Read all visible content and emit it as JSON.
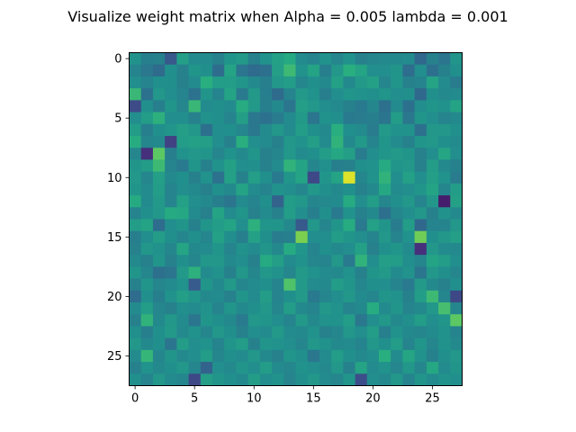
{
  "chart_data": {
    "type": "heatmap",
    "title": "Visualize weight matrix when Alpha = 0.005 lambda =  0.001",
    "xlabel": "",
    "ylabel": "",
    "xlim": [
      -0.5,
      27.5
    ],
    "ylim": [
      27.5,
      -0.5
    ],
    "x_ticks": [
      0,
      5,
      10,
      15,
      20,
      25
    ],
    "y_ticks": [
      0,
      5,
      10,
      15,
      20,
      25
    ],
    "x_tick_labels": [
      "0",
      "5",
      "10",
      "15",
      "20",
      "25"
    ],
    "y_tick_labels": [
      "0",
      "5",
      "10",
      "15",
      "20",
      "25"
    ],
    "colormap": "viridis",
    "vmin": 0,
    "vmax": 1,
    "grid": false,
    "rows": 28,
    "cols": 28,
    "values": [
      [
        0.51,
        0.43,
        0.44,
        0.28,
        0.56,
        0.48,
        0.48,
        0.44,
        0.52,
        0.54,
        0.44,
        0.51,
        0.57,
        0.61,
        0.48,
        0.45,
        0.51,
        0.46,
        0.51,
        0.44,
        0.46,
        0.47,
        0.47,
        0.48,
        0.34,
        0.44,
        0.39,
        0.52
      ],
      [
        0.45,
        0.4,
        0.35,
        0.5,
        0.44,
        0.52,
        0.5,
        0.36,
        0.58,
        0.39,
        0.35,
        0.37,
        0.56,
        0.68,
        0.51,
        0.58,
        0.43,
        0.53,
        0.63,
        0.58,
        0.49,
        0.49,
        0.52,
        0.36,
        0.49,
        0.37,
        0.44,
        0.5
      ],
      [
        0.49,
        0.45,
        0.5,
        0.5,
        0.44,
        0.48,
        0.63,
        0.55,
        0.55,
        0.52,
        0.47,
        0.43,
        0.53,
        0.55,
        0.46,
        0.5,
        0.47,
        0.57,
        0.47,
        0.54,
        0.57,
        0.46,
        0.52,
        0.44,
        0.45,
        0.58,
        0.48,
        0.42
      ],
      [
        0.67,
        0.38,
        0.53,
        0.49,
        0.45,
        0.38,
        0.52,
        0.45,
        0.58,
        0.41,
        0.54,
        0.43,
        0.35,
        0.45,
        0.54,
        0.51,
        0.43,
        0.49,
        0.52,
        0.51,
        0.5,
        0.52,
        0.49,
        0.5,
        0.34,
        0.5,
        0.47,
        0.48
      ],
      [
        0.23,
        0.5,
        0.43,
        0.52,
        0.46,
        0.67,
        0.48,
        0.5,
        0.48,
        0.62,
        0.54,
        0.43,
        0.47,
        0.39,
        0.56,
        0.53,
        0.49,
        0.47,
        0.44,
        0.41,
        0.46,
        0.37,
        0.48,
        0.37,
        0.49,
        0.52,
        0.51,
        0.58
      ],
      [
        0.49,
        0.55,
        0.64,
        0.49,
        0.49,
        0.44,
        0.51,
        0.5,
        0.45,
        0.56,
        0.4,
        0.38,
        0.42,
        0.48,
        0.54,
        0.39,
        0.51,
        0.5,
        0.41,
        0.42,
        0.43,
        0.39,
        0.55,
        0.4,
        0.52,
        0.49,
        0.45,
        0.47
      ],
      [
        0.55,
        0.43,
        0.5,
        0.52,
        0.56,
        0.53,
        0.37,
        0.49,
        0.5,
        0.46,
        0.4,
        0.48,
        0.53,
        0.48,
        0.55,
        0.5,
        0.47,
        0.63,
        0.5,
        0.48,
        0.42,
        0.54,
        0.51,
        0.51,
        0.37,
        0.53,
        0.53,
        0.5
      ],
      [
        0.62,
        0.46,
        0.47,
        0.2,
        0.55,
        0.57,
        0.56,
        0.49,
        0.44,
        0.63,
        0.49,
        0.48,
        0.44,
        0.53,
        0.51,
        0.56,
        0.48,
        0.65,
        0.47,
        0.54,
        0.45,
        0.52,
        0.48,
        0.44,
        0.52,
        0.53,
        0.5,
        0.48
      ],
      [
        0.46,
        0.14,
        0.75,
        0.43,
        0.51,
        0.53,
        0.52,
        0.46,
        0.51,
        0.47,
        0.52,
        0.44,
        0.46,
        0.53,
        0.48,
        0.5,
        0.55,
        0.6,
        0.56,
        0.42,
        0.49,
        0.52,
        0.54,
        0.52,
        0.44,
        0.49,
        0.59,
        0.49
      ],
      [
        0.52,
        0.55,
        0.68,
        0.45,
        0.41,
        0.52,
        0.44,
        0.51,
        0.57,
        0.49,
        0.5,
        0.44,
        0.48,
        0.65,
        0.58,
        0.46,
        0.5,
        0.43,
        0.44,
        0.5,
        0.51,
        0.61,
        0.52,
        0.53,
        0.44,
        0.55,
        0.47,
        0.44
      ],
      [
        0.53,
        0.46,
        0.56,
        0.47,
        0.5,
        0.44,
        0.51,
        0.38,
        0.57,
        0.44,
        0.56,
        0.5,
        0.41,
        0.52,
        0.58,
        0.22,
        0.52,
        0.58,
        0.95,
        0.46,
        0.51,
        0.65,
        0.49,
        0.57,
        0.49,
        0.56,
        0.51,
        0.42
      ],
      [
        0.52,
        0.48,
        0.55,
        0.45,
        0.49,
        0.47,
        0.44,
        0.5,
        0.47,
        0.58,
        0.48,
        0.45,
        0.51,
        0.49,
        0.46,
        0.53,
        0.5,
        0.47,
        0.5,
        0.44,
        0.47,
        0.6,
        0.48,
        0.49,
        0.52,
        0.58,
        0.46,
        0.55
      ],
      [
        0.61,
        0.48,
        0.54,
        0.45,
        0.57,
        0.49,
        0.47,
        0.43,
        0.39,
        0.48,
        0.45,
        0.5,
        0.32,
        0.55,
        0.53,
        0.46,
        0.47,
        0.48,
        0.61,
        0.49,
        0.55,
        0.46,
        0.5,
        0.53,
        0.45,
        0.53,
        0.08,
        0.57
      ],
      [
        0.45,
        0.5,
        0.53,
        0.61,
        0.6,
        0.48,
        0.44,
        0.58,
        0.48,
        0.52,
        0.44,
        0.48,
        0.44,
        0.55,
        0.49,
        0.43,
        0.5,
        0.41,
        0.51,
        0.44,
        0.47,
        0.37,
        0.46,
        0.49,
        0.53,
        0.44,
        0.51,
        0.47
      ],
      [
        0.55,
        0.58,
        0.36,
        0.49,
        0.52,
        0.44,
        0.52,
        0.55,
        0.58,
        0.49,
        0.64,
        0.52,
        0.52,
        0.47,
        0.28,
        0.53,
        0.46,
        0.52,
        0.62,
        0.41,
        0.57,
        0.52,
        0.42,
        0.55,
        0.34,
        0.45,
        0.45,
        0.53
      ],
      [
        0.43,
        0.49,
        0.55,
        0.5,
        0.46,
        0.5,
        0.46,
        0.57,
        0.49,
        0.43,
        0.57,
        0.5,
        0.42,
        0.43,
        0.8,
        0.49,
        0.49,
        0.55,
        0.52,
        0.49,
        0.45,
        0.53,
        0.45,
        0.51,
        0.78,
        0.5,
        0.53,
        0.56
      ],
      [
        0.44,
        0.53,
        0.51,
        0.46,
        0.59,
        0.47,
        0.48,
        0.52,
        0.45,
        0.51,
        0.48,
        0.52,
        0.47,
        0.61,
        0.52,
        0.45,
        0.5,
        0.47,
        0.49,
        0.57,
        0.44,
        0.5,
        0.52,
        0.48,
        0.14,
        0.53,
        0.48,
        0.47
      ],
      [
        0.47,
        0.44,
        0.52,
        0.44,
        0.5,
        0.46,
        0.53,
        0.53,
        0.47,
        0.49,
        0.44,
        0.61,
        0.56,
        0.48,
        0.51,
        0.46,
        0.45,
        0.53,
        0.41,
        0.65,
        0.49,
        0.56,
        0.55,
        0.49,
        0.46,
        0.58,
        0.55,
        0.49
      ],
      [
        0.52,
        0.46,
        0.37,
        0.39,
        0.54,
        0.64,
        0.48,
        0.51,
        0.44,
        0.53,
        0.46,
        0.53,
        0.51,
        0.46,
        0.54,
        0.51,
        0.48,
        0.47,
        0.51,
        0.44,
        0.52,
        0.54,
        0.48,
        0.51,
        0.39,
        0.53,
        0.5,
        0.46
      ],
      [
        0.44,
        0.52,
        0.46,
        0.48,
        0.51,
        0.29,
        0.52,
        0.47,
        0.54,
        0.46,
        0.48,
        0.5,
        0.45,
        0.72,
        0.54,
        0.48,
        0.47,
        0.55,
        0.52,
        0.46,
        0.5,
        0.49,
        0.45,
        0.41,
        0.54,
        0.47,
        0.44,
        0.5
      ],
      [
        0.36,
        0.5,
        0.43,
        0.51,
        0.56,
        0.52,
        0.47,
        0.48,
        0.44,
        0.52,
        0.48,
        0.55,
        0.45,
        0.5,
        0.54,
        0.41,
        0.46,
        0.49,
        0.53,
        0.48,
        0.46,
        0.52,
        0.51,
        0.44,
        0.55,
        0.68,
        0.46,
        0.22
      ],
      [
        0.48,
        0.55,
        0.46,
        0.44,
        0.49,
        0.48,
        0.51,
        0.45,
        0.52,
        0.47,
        0.5,
        0.53,
        0.46,
        0.55,
        0.47,
        0.45,
        0.53,
        0.51,
        0.45,
        0.47,
        0.62,
        0.48,
        0.52,
        0.45,
        0.47,
        0.53,
        0.7,
        0.46
      ],
      [
        0.44,
        0.65,
        0.47,
        0.53,
        0.48,
        0.39,
        0.52,
        0.5,
        0.47,
        0.41,
        0.53,
        0.52,
        0.49,
        0.45,
        0.54,
        0.47,
        0.51,
        0.51,
        0.55,
        0.4,
        0.49,
        0.53,
        0.47,
        0.5,
        0.55,
        0.49,
        0.52,
        0.75
      ],
      [
        0.5,
        0.43,
        0.5,
        0.54,
        0.47,
        0.51,
        0.46,
        0.53,
        0.5,
        0.44,
        0.49,
        0.48,
        0.54,
        0.48,
        0.47,
        0.51,
        0.44,
        0.46,
        0.53,
        0.49,
        0.55,
        0.43,
        0.51,
        0.47,
        0.46,
        0.48,
        0.51,
        0.45
      ],
      [
        0.53,
        0.47,
        0.5,
        0.39,
        0.55,
        0.49,
        0.51,
        0.45,
        0.52,
        0.55,
        0.44,
        0.52,
        0.51,
        0.49,
        0.46,
        0.53,
        0.51,
        0.47,
        0.48,
        0.45,
        0.53,
        0.5,
        0.55,
        0.45,
        0.52,
        0.46,
        0.51,
        0.47
      ],
      [
        0.48,
        0.66,
        0.46,
        0.52,
        0.47,
        0.49,
        0.55,
        0.46,
        0.5,
        0.48,
        0.53,
        0.47,
        0.44,
        0.52,
        0.5,
        0.4,
        0.48,
        0.55,
        0.5,
        0.47,
        0.49,
        0.63,
        0.48,
        0.59,
        0.51,
        0.44,
        0.5,
        0.53
      ],
      [
        0.44,
        0.51,
        0.47,
        0.5,
        0.53,
        0.46,
        0.32,
        0.49,
        0.47,
        0.52,
        0.49,
        0.55,
        0.48,
        0.46,
        0.51,
        0.49,
        0.47,
        0.53,
        0.44,
        0.58,
        0.48,
        0.51,
        0.46,
        0.53,
        0.46,
        0.6,
        0.48,
        0.52
      ],
      [
        0.5,
        0.45,
        0.53,
        0.48,
        0.46,
        0.22,
        0.56,
        0.52,
        0.5,
        0.47,
        0.55,
        0.49,
        0.51,
        0.45,
        0.5,
        0.53,
        0.48,
        0.46,
        0.52,
        0.24,
        0.49,
        0.47,
        0.53,
        0.45,
        0.52,
        0.48,
        0.51,
        0.5
      ]
    ]
  }
}
